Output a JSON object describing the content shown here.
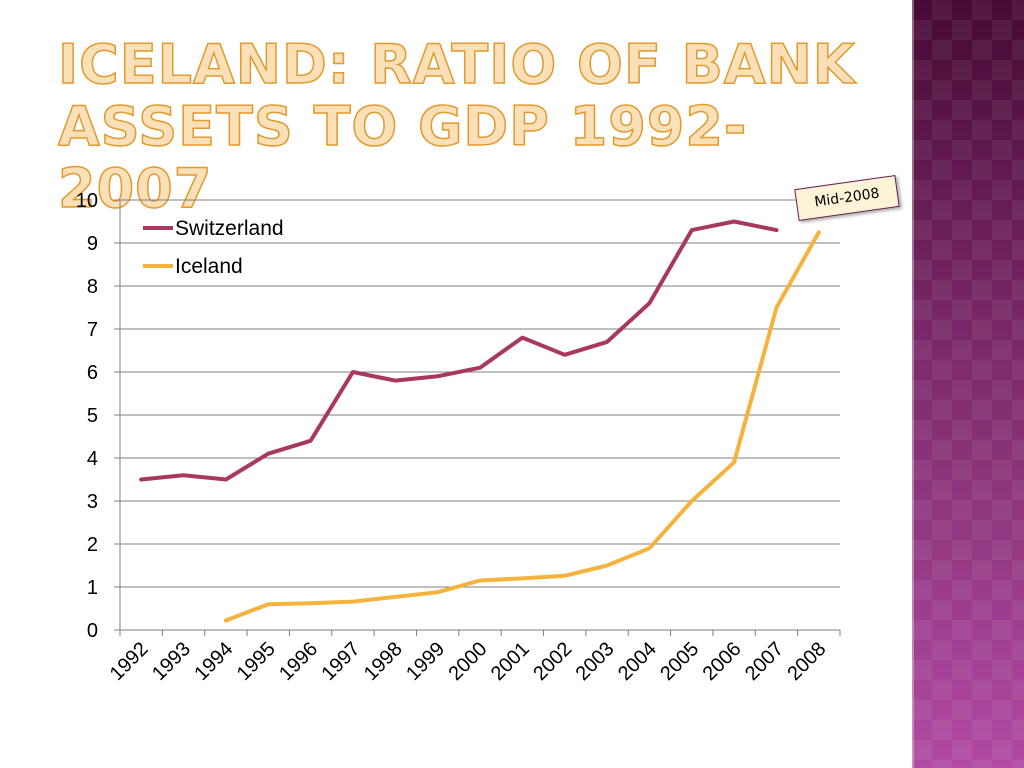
{
  "slide": {
    "title_line1": "ICELAND: RATIO OF BANK",
    "title_line2": "ASSETS TO GDP 1992-2007"
  },
  "annotation": {
    "text": "Mid-2008"
  },
  "colors": {
    "switzerland": "#a8385f",
    "iceland": "#f5b33e",
    "gridline": "#7f7f7f",
    "panel": "#7b2a69"
  },
  "chart_data": {
    "type": "line",
    "title": "",
    "xlabel": "",
    "ylabel": "",
    "categories": [
      "1992",
      "1993",
      "1994",
      "1995",
      "1996",
      "1997",
      "1998",
      "1999",
      "2000",
      "2001",
      "2002",
      "2003",
      "2004",
      "2005",
      "2006",
      "2007",
      "2008"
    ],
    "ylim": [
      0,
      10
    ],
    "yticks": [
      0,
      1,
      2,
      3,
      4,
      5,
      6,
      7,
      8,
      9,
      10
    ],
    "grid": true,
    "legend": "top-left",
    "series": [
      {
        "name": "Switzerland",
        "color": "#a8385f",
        "values": [
          3.5,
          3.6,
          3.5,
          4.1,
          4.4,
          6.0,
          5.8,
          5.9,
          6.1,
          6.8,
          6.4,
          6.7,
          7.6,
          9.3,
          9.5,
          9.3,
          null
        ]
      },
      {
        "name": "Iceland",
        "color": "#f5b33e",
        "values": [
          null,
          null,
          0.22,
          0.6,
          0.62,
          0.66,
          0.77,
          0.88,
          1.15,
          1.2,
          1.26,
          1.5,
          1.9,
          3.0,
          3.9,
          7.5,
          9.25
        ]
      }
    ]
  }
}
